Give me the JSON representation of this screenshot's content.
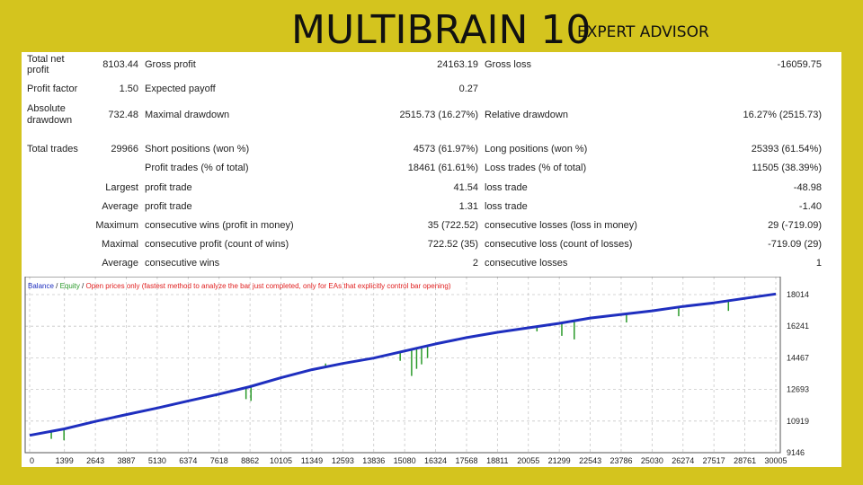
{
  "header": {
    "title": "MULTIBRAIN 10",
    "subtitle": "EXPERT ADVISOR"
  },
  "report": {
    "total_net_profit": {
      "label1": "Total net",
      "label2": "profit",
      "value": "8103.44"
    },
    "gross_profit": {
      "label": "Gross profit",
      "value": "24163.19"
    },
    "gross_loss": {
      "label": "Gross loss",
      "value": "-16059.75"
    },
    "profit_factor": {
      "label": "Profit factor",
      "value": "1.50"
    },
    "expected_payoff": {
      "label": "Expected payoff",
      "value": "0.27"
    },
    "absolute_drawdown": {
      "label1": "Absolute",
      "label2": "drawdown",
      "value": "732.48"
    },
    "maximal_drawdown": {
      "label": "Maximal drawdown",
      "value": "2515.73 (16.27%)"
    },
    "relative_drawdown": {
      "label": "Relative drawdown",
      "value": "16.27% (2515.73)"
    },
    "total_trades": {
      "label": "Total trades",
      "value": "29966"
    },
    "short_positions": {
      "label": "Short positions (won %)",
      "value": "4573 (61.97%)"
    },
    "long_positions": {
      "label": "Long positions (won %)",
      "value": "25393 (61.54%)"
    },
    "profit_trades": {
      "label": "Profit trades (% of total)",
      "value": "18461 (61.61%)"
    },
    "loss_trades": {
      "label": "Loss trades (% of total)",
      "value": "11505 (38.39%)"
    },
    "largest": {
      "label": "Largest",
      "profit_label": "profit trade",
      "profit_value": "41.54",
      "loss_label": "loss trade",
      "loss_value": "-48.98"
    },
    "average": {
      "label": "Average",
      "profit_label": "profit trade",
      "profit_value": "1.31",
      "loss_label": "loss trade",
      "loss_value": "-1.40"
    },
    "maximum": {
      "label": "Maximum",
      "wins_label": "consecutive wins (profit in money)",
      "wins_value": "35 (722.52)",
      "losses_label": "consecutive losses (loss in money)",
      "losses_value": "29 (-719.09)"
    },
    "maximal": {
      "label": "Maximal",
      "wins_label": "consecutive profit (count of wins)",
      "wins_value": "722.52 (35)",
      "losses_label": "consecutive loss (count of losses)",
      "losses_value": "-719.09 (29)"
    },
    "average_consecutive": {
      "label": "Average",
      "wins_label": "consecutive wins",
      "wins_value": "2",
      "losses_label": "consecutive losses",
      "losses_value": "1"
    }
  },
  "chart_data": {
    "type": "line",
    "legend": {
      "balance": "Balance",
      "sep1": " / ",
      "equity": "Equity",
      "sep2": " / ",
      "note": "Open prices only (fastest method to analyze the bar just completed, only for EAs that explicitly control bar opening)"
    },
    "colors": {
      "balance": "#1f2fbf",
      "equity": "#2a9a2a",
      "note": "#e02020",
      "grid": "#c8c8c8"
    },
    "x_ticks": [
      "0",
      "1399",
      "2643",
      "3887",
      "5130",
      "6374",
      "7618",
      "8862",
      "10105",
      "11349",
      "12593",
      "13836",
      "15080",
      "16324",
      "17568",
      "18811",
      "20055",
      "21299",
      "22543",
      "23786",
      "25030",
      "26274",
      "27517",
      "28761",
      "30005"
    ],
    "y_ticks": [
      "18014",
      "16241",
      "14467",
      "12693",
      "10919",
      "9146"
    ],
    "xlim": [
      0,
      30005
    ],
    "ylim": [
      9146,
      18014
    ],
    "grid": true,
    "series": [
      {
        "name": "Balance",
        "x": [
          0,
          1399,
          2643,
          3887,
          5130,
          6374,
          7618,
          8862,
          10105,
          11349,
          12593,
          13836,
          15080,
          16324,
          17568,
          18811,
          20055,
          21299,
          22543,
          23786,
          25030,
          26274,
          27517,
          28761,
          30005
        ],
        "y": [
          10120,
          10480,
          10900,
          11280,
          11650,
          12050,
          12430,
          12850,
          13350,
          13800,
          14150,
          14450,
          14850,
          15250,
          15600,
          15900,
          16150,
          16400,
          16700,
          16900,
          17100,
          17350,
          17550,
          17800,
          18050
        ]
      },
      {
        "name": "Equity",
        "drawdowns": [
          {
            "x": 870,
            "y": 9920
          },
          {
            "x": 1380,
            "y": 9840
          },
          {
            "x": 7500,
            "y": 12300
          },
          {
            "x": 8700,
            "y": 12150
          },
          {
            "x": 8900,
            "y": 12050
          },
          {
            "x": 11900,
            "y": 14150
          },
          {
            "x": 14900,
            "y": 14300
          },
          {
            "x": 15360,
            "y": 13450
          },
          {
            "x": 15560,
            "y": 13850
          },
          {
            "x": 15760,
            "y": 14100
          },
          {
            "x": 16000,
            "y": 14450
          },
          {
            "x": 20400,
            "y": 15950
          },
          {
            "x": 21400,
            "y": 15700
          },
          {
            "x": 21900,
            "y": 15500
          },
          {
            "x": 24000,
            "y": 16450
          },
          {
            "x": 26100,
            "y": 16800
          },
          {
            "x": 28100,
            "y": 17100
          }
        ]
      }
    ]
  }
}
